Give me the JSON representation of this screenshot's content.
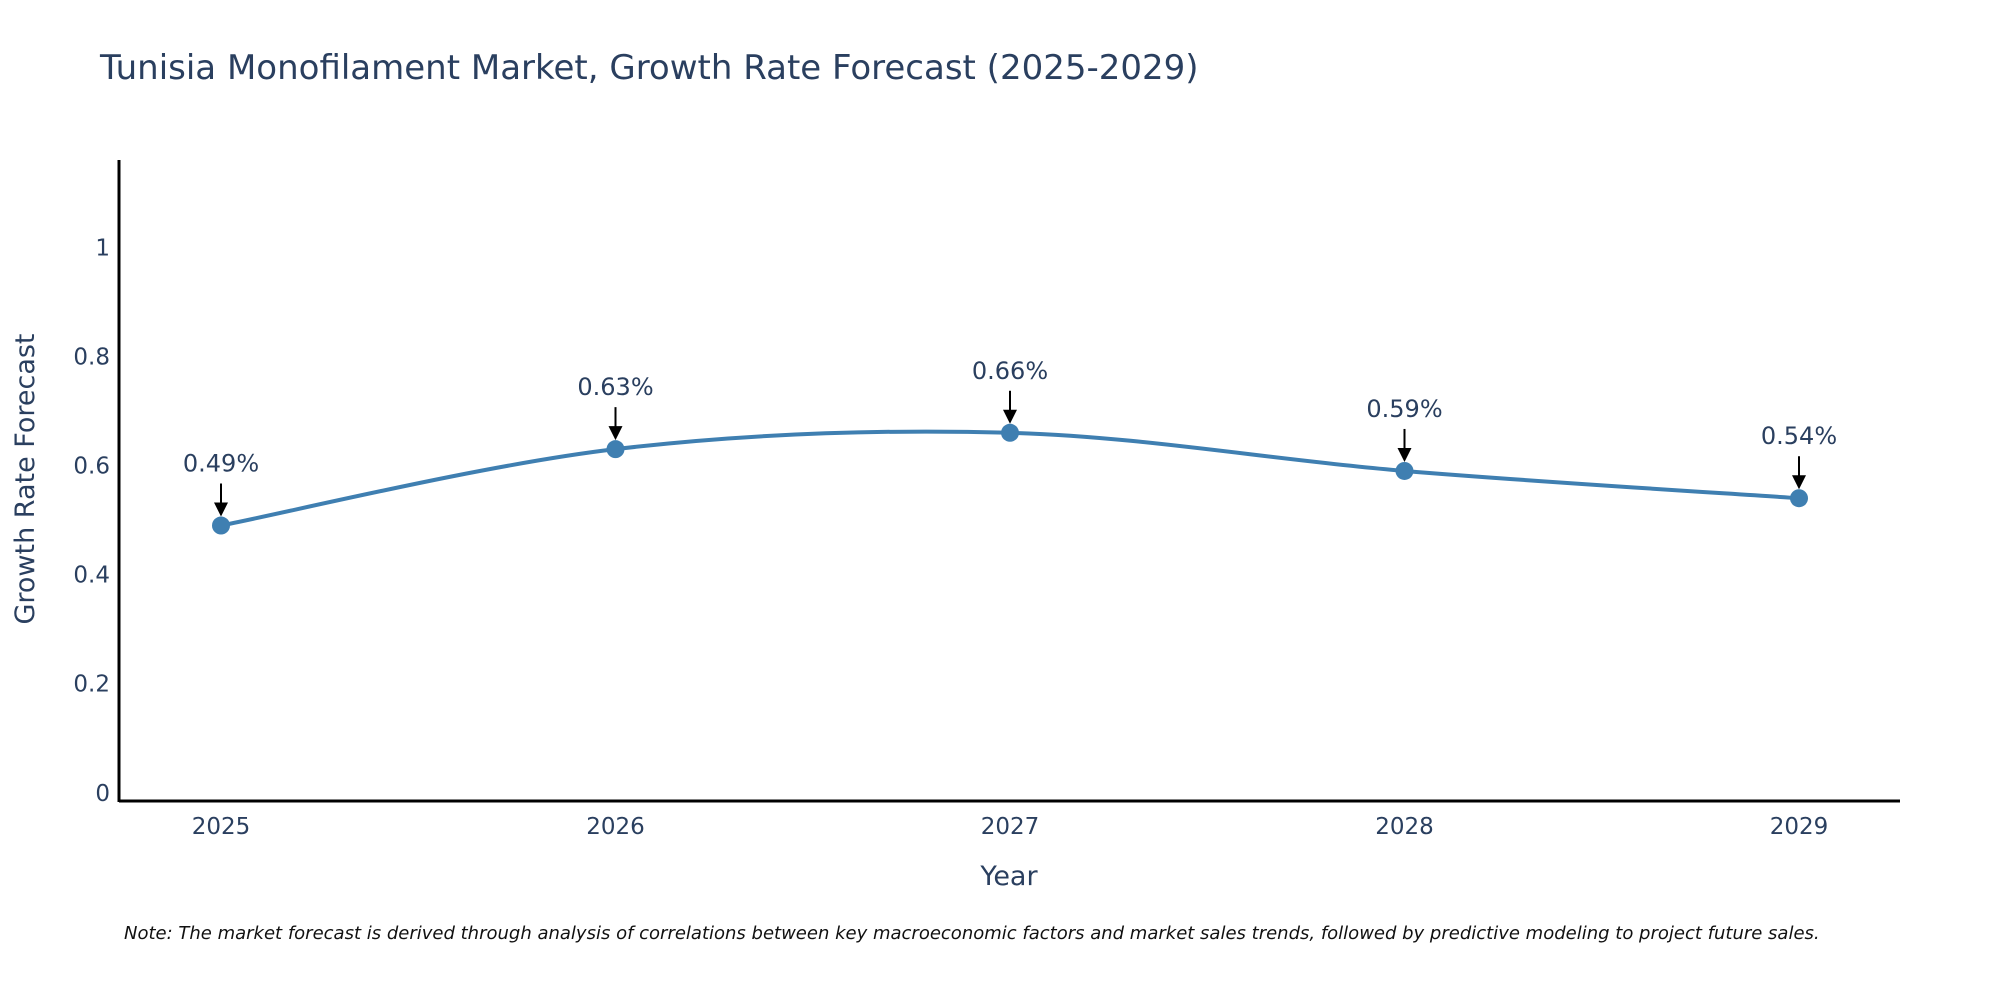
{
  "chart_data": {
    "type": "line",
    "title": "Tunisia Monofilament Market, Growth Rate Forecast (2025-2029)",
    "xlabel": "Year",
    "ylabel": "Growth Rate Forecast",
    "categories": [
      "2025",
      "2026",
      "2027",
      "2028",
      "2029"
    ],
    "values": [
      0.49,
      0.63,
      0.66,
      0.59,
      0.54
    ],
    "data_labels": [
      "0.49%",
      "0.63%",
      "0.66%",
      "0.59%",
      "0.54%"
    ],
    "yticks": [
      0,
      0.2,
      0.4,
      0.6,
      0.8,
      1
    ],
    "ytick_labels": [
      "0",
      "0.2",
      "0.4",
      "0.6",
      "0.8",
      "1"
    ],
    "ylim": [
      -0.015,
      1.16
    ],
    "grid": false,
    "line_shape": "spline",
    "series_color": "#3f7fb1",
    "note": "Note: The market forecast is derived through analysis of correlations between key macroeconomic factors and market sales trends, followed by predictive modeling to project future sales."
  }
}
